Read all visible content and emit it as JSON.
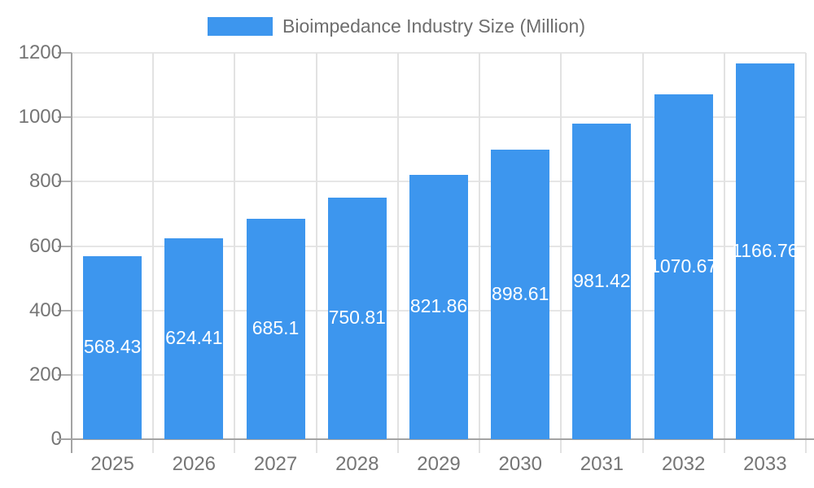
{
  "legend": {
    "label": "Bioimpedance Industry Size (Million)",
    "swatch_color": "#3d96ee"
  },
  "chart_data": {
    "type": "bar",
    "title": "Bioimpedance Industry Size (Million)",
    "series_name": "Bioimpedance Industry Size (Million)",
    "categories": [
      "2025",
      "2026",
      "2027",
      "2028",
      "2029",
      "2030",
      "2031",
      "2032",
      "2033"
    ],
    "values": [
      568.43,
      624.41,
      685.1,
      750.81,
      821.86,
      898.61,
      981.42,
      1070.67,
      1166.76
    ],
    "data_labels": [
      "568.43",
      "624.41",
      "685.1",
      "750.81",
      "821.86",
      "898.61",
      "981.42",
      "1070.67",
      "1166.76"
    ],
    "xlabel": "",
    "ylabel": "",
    "ylim": [
      0,
      1200
    ],
    "yticks": [
      0,
      200,
      400,
      600,
      800,
      1000,
      1200
    ],
    "grid": true,
    "legend_position": "top",
    "bar_color": "#3d96ee",
    "data_label_color": "#ffffff",
    "axis_text_color": "#757575",
    "gridline_color": "#e6e6e6",
    "axis_line_color": "#a3a3a3"
  }
}
